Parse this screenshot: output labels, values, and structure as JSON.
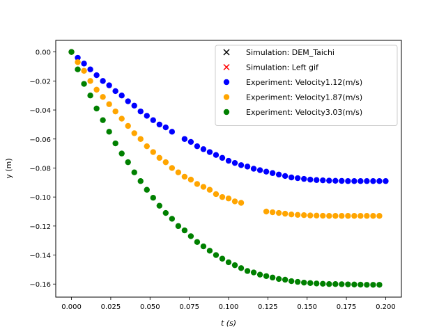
{
  "chart_data": {
    "type": "scatter",
    "title": "",
    "xlabel": "t (s)",
    "ylabel": "y (m)",
    "xlim": [
      -0.01,
      0.21
    ],
    "ylim": [
      -0.169,
      0.008
    ],
    "x_ticks": [
      0.0,
      0.025,
      0.05,
      0.075,
      0.1,
      0.125,
      0.15,
      0.175,
      0.2
    ],
    "x_tick_labels": [
      "0.000",
      "0.025",
      "0.050",
      "0.075",
      "0.100",
      "0.125",
      "0.150",
      "0.175",
      "0.200"
    ],
    "y_ticks": [
      0.0,
      -0.02,
      -0.04,
      -0.06,
      -0.08,
      -0.1,
      -0.12,
      -0.14,
      -0.16
    ],
    "y_tick_labels": [
      "0.00",
      "−0.02",
      "−0.04",
      "−0.06",
      "−0.08",
      "−0.10",
      "−0.12",
      "−0.14",
      "−0.16"
    ],
    "grid": false,
    "legend_position": "top-right",
    "series": [
      {
        "name": "Simulation: DEM_Taichi",
        "marker": "x",
        "color": "#000000",
        "x": [],
        "y": []
      },
      {
        "name": "Simulation: Left gif",
        "marker": "x",
        "color": "#ff0000",
        "x": [],
        "y": []
      },
      {
        "name": "Experiment: Velocity1.12(m/s)",
        "marker": "o",
        "color": "#0000ff",
        "x": [
          0.0,
          0.004,
          0.008,
          0.012,
          0.016,
          0.02,
          0.024,
          0.028,
          0.032,
          0.036,
          0.04,
          0.044,
          0.048,
          0.052,
          0.056,
          0.06,
          0.064,
          0.072,
          0.076,
          0.08,
          0.084,
          0.088,
          0.092,
          0.096,
          0.1,
          0.104,
          0.108,
          0.112,
          0.116,
          0.12,
          0.124,
          0.128,
          0.132,
          0.136,
          0.14,
          0.144,
          0.148,
          0.152,
          0.156,
          0.16,
          0.164,
          0.168,
          0.172,
          0.176,
          0.18,
          0.184,
          0.188,
          0.192,
          0.196,
          0.2
        ],
        "y": [
          0.0,
          -0.004,
          -0.008,
          -0.012,
          -0.016,
          -0.02,
          -0.023,
          -0.027,
          -0.03,
          -0.034,
          -0.037,
          -0.041,
          -0.044,
          -0.047,
          -0.05,
          -0.052,
          -0.055,
          -0.06,
          -0.062,
          -0.065,
          -0.067,
          -0.069,
          -0.071,
          -0.073,
          -0.075,
          -0.0765,
          -0.078,
          -0.079,
          -0.0805,
          -0.0815,
          -0.0825,
          -0.0835,
          -0.0845,
          -0.0855,
          -0.0865,
          -0.087,
          -0.0875,
          -0.088,
          -0.0883,
          -0.0885,
          -0.0887,
          -0.0888,
          -0.0889,
          -0.089,
          -0.089,
          -0.089,
          -0.089,
          -0.089,
          -0.089,
          -0.089
        ]
      },
      {
        "name": "Experiment: Velocity1.87(m/s)",
        "marker": "o",
        "color": "#ffa500",
        "x": [
          0.0,
          0.004,
          0.008,
          0.012,
          0.016,
          0.02,
          0.024,
          0.028,
          0.032,
          0.036,
          0.04,
          0.044,
          0.048,
          0.052,
          0.056,
          0.06,
          0.064,
          0.068,
          0.072,
          0.076,
          0.08,
          0.084,
          0.088,
          0.092,
          0.096,
          0.1,
          0.104,
          0.108,
          0.124,
          0.128,
          0.132,
          0.136,
          0.14,
          0.144,
          0.148,
          0.152,
          0.156,
          0.16,
          0.164,
          0.168,
          0.172,
          0.176,
          0.18,
          0.184,
          0.188,
          0.192,
          0.196
        ],
        "y": [
          0.0,
          -0.007,
          -0.013,
          -0.02,
          -0.026,
          -0.031,
          -0.036,
          -0.041,
          -0.046,
          -0.051,
          -0.056,
          -0.06,
          -0.065,
          -0.069,
          -0.073,
          -0.076,
          -0.08,
          -0.083,
          -0.086,
          -0.088,
          -0.091,
          -0.093,
          -0.095,
          -0.098,
          -0.1,
          -0.101,
          -0.103,
          -0.104,
          -0.11,
          -0.1105,
          -0.111,
          -0.1115,
          -0.112,
          -0.1123,
          -0.1125,
          -0.1127,
          -0.1128,
          -0.1129,
          -0.113,
          -0.113,
          -0.113,
          -0.113,
          -0.113,
          -0.113,
          -0.113,
          -0.113,
          -0.113
        ]
      },
      {
        "name": "Experiment: Velocity3.03(m/s)",
        "marker": "o",
        "color": "#008000",
        "x": [
          0.0,
          0.004,
          0.008,
          0.012,
          0.016,
          0.02,
          0.024,
          0.028,
          0.032,
          0.036,
          0.04,
          0.044,
          0.048,
          0.052,
          0.056,
          0.06,
          0.064,
          0.068,
          0.072,
          0.076,
          0.08,
          0.084,
          0.088,
          0.092,
          0.096,
          0.1,
          0.104,
          0.108,
          0.112,
          0.116,
          0.12,
          0.124,
          0.128,
          0.132,
          0.136,
          0.14,
          0.144,
          0.148,
          0.152,
          0.156,
          0.16,
          0.164,
          0.168,
          0.172,
          0.176,
          0.18,
          0.184,
          0.188,
          0.192,
          0.196
        ],
        "y": [
          0.0,
          -0.012,
          -0.022,
          -0.03,
          -0.039,
          -0.047,
          -0.055,
          -0.063,
          -0.07,
          -0.076,
          -0.083,
          -0.089,
          -0.095,
          -0.1005,
          -0.106,
          -0.111,
          -0.115,
          -0.12,
          -0.123,
          -0.127,
          -0.131,
          -0.134,
          -0.137,
          -0.14,
          -0.1425,
          -0.145,
          -0.147,
          -0.149,
          -0.151,
          -0.152,
          -0.1535,
          -0.1545,
          -0.1555,
          -0.1565,
          -0.157,
          -0.158,
          -0.1585,
          -0.159,
          -0.1593,
          -0.1596,
          -0.1598,
          -0.16,
          -0.16,
          -0.1601,
          -0.1602,
          -0.1603,
          -0.1604,
          -0.1605,
          -0.1605,
          -0.1605
        ]
      }
    ]
  }
}
